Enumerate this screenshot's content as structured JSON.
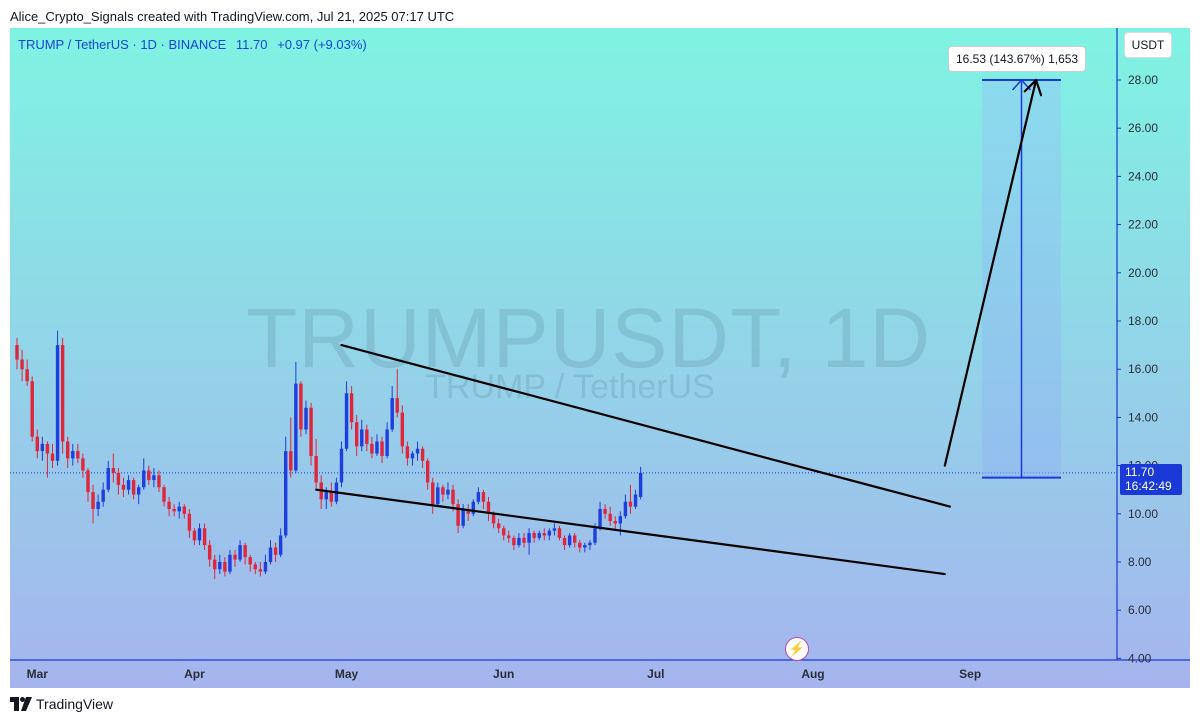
{
  "header": {
    "attribution": "Alice_Crypto_Signals created with TradingView.com, Jul 21, 2025 07:17 UTC"
  },
  "legend": {
    "symbol": "TRUMP / TetherUS · 1D · BINANCE",
    "last": "11.70",
    "change": "+0.97 (+9.03%)"
  },
  "watermark": {
    "main": "TRUMPUSDT, 1D",
    "sub": "TRUMP / TetherUS"
  },
  "currency": "USDT",
  "projection": {
    "label": "16.53 (143.67%) 1,653",
    "from": 11.5,
    "to": 28.0
  },
  "price_badge": {
    "price": "11.70",
    "countdown": "16:42:49"
  },
  "footer": {
    "brand": "TradingView"
  },
  "colors": {
    "up": "#1d3fe0",
    "down": "#e0263b",
    "axis": "#1a39d6",
    "grad_top": "#7ff3e2",
    "grad_bottom": "#a6b4ee"
  },
  "chart_data": {
    "type": "candlestick",
    "symbol": "TRUMPUSDT",
    "timeframe": "1D",
    "ylim": [
      4,
      30
    ],
    "yticks": [
      "28.00",
      "26.00",
      "24.00",
      "22.00",
      "20.00",
      "18.00",
      "16.00",
      "14.00",
      "12.00",
      "10.00",
      "8.00",
      "6.00",
      "4.00"
    ],
    "xticks": [
      {
        "label": "Mar",
        "day": 4
      },
      {
        "label": "Apr",
        "day": 35
      },
      {
        "label": "May",
        "day": 65
      },
      {
        "label": "Jun",
        "day": 96
      },
      {
        "label": "Jul",
        "day": 126
      },
      {
        "label": "Aug",
        "day": 157
      },
      {
        "label": "Sep",
        "day": 188
      }
    ],
    "current_price": 11.7,
    "candles": [
      [
        17.0,
        17.3,
        16.0,
        16.4
      ],
      [
        16.4,
        16.8,
        15.5,
        16.0
      ],
      [
        16.0,
        16.4,
        15.3,
        15.5
      ],
      [
        15.5,
        15.7,
        13.0,
        13.2
      ],
      [
        13.2,
        13.5,
        12.3,
        12.6
      ],
      [
        12.6,
        13.2,
        12.2,
        12.9
      ],
      [
        12.9,
        13.0,
        11.5,
        12.5
      ],
      [
        12.5,
        12.9,
        11.9,
        12.2
      ],
      [
        12.2,
        17.6,
        12.0,
        17.0
      ],
      [
        17.0,
        17.3,
        12.5,
        13.0
      ],
      [
        13.0,
        13.2,
        11.9,
        12.3
      ],
      [
        12.3,
        12.9,
        12.0,
        12.6
      ],
      [
        12.6,
        12.9,
        12.1,
        12.3
      ],
      [
        12.3,
        12.5,
        11.5,
        11.8
      ],
      [
        11.8,
        11.9,
        10.5,
        10.9
      ],
      [
        10.9,
        11.2,
        9.6,
        10.2
      ],
      [
        10.2,
        10.8,
        9.9,
        10.5
      ],
      [
        10.5,
        11.3,
        10.3,
        11.0
      ],
      [
        11.0,
        12.2,
        10.9,
        11.9
      ],
      [
        11.9,
        12.5,
        11.3,
        11.7
      ],
      [
        11.7,
        11.9,
        10.8,
        11.2
      ],
      [
        11.2,
        11.5,
        10.7,
        11.0
      ],
      [
        11.0,
        11.6,
        10.8,
        11.4
      ],
      [
        11.4,
        11.5,
        10.6,
        10.8
      ],
      [
        10.8,
        11.2,
        10.4,
        11.1
      ],
      [
        11.1,
        12.3,
        11.0,
        11.8
      ],
      [
        11.8,
        12.0,
        11.2,
        11.4
      ],
      [
        11.4,
        11.9,
        11.1,
        11.6
      ],
      [
        11.6,
        11.8,
        10.9,
        11.1
      ],
      [
        11.1,
        11.2,
        10.3,
        10.5
      ],
      [
        10.5,
        10.7,
        9.9,
        10.2
      ],
      [
        10.2,
        10.4,
        9.9,
        10.1
      ],
      [
        10.1,
        10.5,
        9.8,
        10.3
      ],
      [
        10.3,
        10.4,
        9.8,
        10.0
      ],
      [
        10.0,
        10.2,
        9.0,
        9.3
      ],
      [
        9.3,
        9.4,
        8.7,
        8.9
      ],
      [
        8.9,
        9.6,
        8.7,
        9.4
      ],
      [
        9.4,
        9.6,
        8.5,
        8.7
      ],
      [
        8.7,
        8.9,
        7.8,
        8.1
      ],
      [
        8.1,
        8.3,
        7.3,
        7.7
      ],
      [
        7.7,
        8.3,
        7.5,
        8.0
      ],
      [
        8.0,
        8.2,
        7.4,
        7.6
      ],
      [
        7.6,
        8.5,
        7.5,
        8.3
      ],
      [
        8.3,
        8.5,
        7.8,
        8.1
      ],
      [
        8.1,
        8.9,
        8.0,
        8.7
      ],
      [
        8.7,
        8.8,
        7.9,
        8.2
      ],
      [
        8.2,
        8.3,
        7.6,
        7.9
      ],
      [
        7.9,
        8.0,
        7.5,
        7.7
      ],
      [
        7.7,
        8.0,
        7.4,
        7.6
      ],
      [
        7.6,
        8.3,
        7.5,
        8.0
      ],
      [
        8.0,
        8.9,
        7.9,
        8.6
      ],
      [
        8.6,
        8.8,
        8.0,
        8.3
      ],
      [
        8.3,
        9.4,
        8.2,
        9.1
      ],
      [
        9.1,
        13.2,
        9.0,
        12.6
      ],
      [
        12.6,
        14.0,
        11.5,
        11.8
      ],
      [
        11.8,
        16.3,
        11.7,
        15.4
      ],
      [
        15.4,
        15.5,
        13.2,
        13.5
      ],
      [
        13.5,
        14.7,
        13.3,
        14.4
      ],
      [
        14.4,
        14.6,
        12.0,
        12.4
      ],
      [
        12.4,
        13.1,
        11.0,
        11.3
      ],
      [
        11.3,
        11.6,
        10.2,
        10.6
      ],
      [
        10.6,
        11.1,
        10.2,
        10.9
      ],
      [
        10.9,
        11.3,
        10.3,
        10.5
      ],
      [
        10.5,
        11.5,
        10.4,
        11.3
      ],
      [
        11.3,
        13.0,
        11.1,
        12.7
      ],
      [
        12.7,
        15.5,
        12.6,
        15.0
      ],
      [
        15.0,
        15.3,
        13.5,
        13.8
      ],
      [
        13.8,
        14.1,
        12.4,
        12.8
      ],
      [
        12.8,
        13.9,
        12.6,
        13.5
      ],
      [
        13.5,
        13.7,
        12.6,
        12.9
      ],
      [
        12.9,
        13.2,
        12.3,
        12.5
      ],
      [
        12.5,
        13.3,
        12.4,
        13.0
      ],
      [
        13.0,
        13.2,
        12.1,
        12.4
      ],
      [
        12.4,
        13.8,
        12.3,
        13.5
      ],
      [
        13.5,
        15.3,
        13.4,
        14.8
      ],
      [
        14.8,
        16.0,
        14.0,
        14.2
      ],
      [
        14.2,
        14.5,
        12.5,
        12.8
      ],
      [
        12.8,
        13.0,
        12.0,
        12.3
      ],
      [
        12.3,
        12.6,
        12.0,
        12.5
      ],
      [
        12.5,
        13.0,
        12.2,
        12.7
      ],
      [
        12.7,
        12.8,
        11.9,
        12.2
      ],
      [
        12.2,
        12.3,
        11.0,
        11.3
      ],
      [
        11.3,
        11.5,
        10.0,
        10.4
      ],
      [
        10.4,
        11.3,
        10.3,
        11.1
      ],
      [
        11.1,
        11.2,
        10.5,
        10.8
      ],
      [
        10.8,
        11.3,
        10.6,
        11.0
      ],
      [
        11.0,
        11.2,
        10.1,
        10.4
      ],
      [
        10.4,
        10.6,
        9.2,
        9.5
      ],
      [
        9.5,
        10.4,
        9.4,
        10.2
      ],
      [
        10.2,
        10.4,
        9.7,
        10.0
      ],
      [
        10.0,
        10.6,
        9.9,
        10.5
      ],
      [
        10.5,
        11.1,
        10.4,
        10.9
      ],
      [
        10.9,
        11.0,
        10.2,
        10.5
      ],
      [
        10.5,
        10.7,
        9.7,
        10.0
      ],
      [
        10.0,
        10.1,
        9.4,
        9.6
      ],
      [
        9.6,
        9.8,
        9.2,
        9.4
      ],
      [
        9.4,
        9.5,
        8.9,
        9.1
      ],
      [
        9.1,
        9.3,
        8.8,
        9.0
      ],
      [
        9.0,
        9.1,
        8.5,
        8.7
      ],
      [
        8.7,
        9.2,
        8.6,
        9.0
      ],
      [
        9.0,
        9.2,
        8.6,
        8.8
      ],
      [
        8.8,
        9.4,
        8.3,
        9.2
      ],
      [
        9.2,
        9.3,
        8.8,
        9.0
      ],
      [
        9.0,
        9.3,
        8.9,
        9.2
      ],
      [
        9.2,
        9.4,
        8.9,
        9.1
      ],
      [
        9.1,
        9.4,
        8.9,
        9.3
      ],
      [
        9.3,
        9.6,
        9.1,
        9.4
      ],
      [
        9.4,
        9.5,
        8.9,
        9.0
      ],
      [
        9.0,
        9.1,
        8.5,
        8.7
      ],
      [
        8.7,
        9.2,
        8.6,
        9.1
      ],
      [
        9.1,
        9.2,
        8.6,
        8.8
      ],
      [
        8.8,
        8.9,
        8.4,
        8.6
      ],
      [
        8.6,
        8.8,
        8.4,
        8.7
      ],
      [
        8.7,
        8.9,
        8.5,
        8.8
      ],
      [
        8.8,
        9.6,
        8.7,
        9.4
      ],
      [
        9.4,
        10.5,
        9.3,
        10.2
      ],
      [
        10.2,
        10.4,
        9.8,
        10.0
      ],
      [
        10.0,
        10.3,
        9.5,
        9.7
      ],
      [
        9.7,
        9.9,
        9.3,
        9.6
      ],
      [
        9.6,
        10.1,
        9.1,
        9.9
      ],
      [
        9.9,
        10.8,
        9.8,
        10.5
      ],
      [
        10.5,
        11.2,
        10.0,
        10.3
      ],
      [
        10.3,
        11.0,
        10.2,
        10.8
      ],
      [
        10.7,
        11.95,
        10.6,
        11.7
      ]
    ],
    "trendlines": [
      {
        "name": "upper-wedge-line",
        "from": [
          64,
          17.0
        ],
        "to": [
          184,
          10.3
        ]
      },
      {
        "name": "lower-wedge-line",
        "from": [
          59,
          11.0
        ],
        "to": [
          183,
          7.5
        ]
      },
      {
        "name": "projection-arrow",
        "from": [
          183,
          12.0
        ],
        "to": [
          201,
          28.0
        ]
      }
    ]
  }
}
